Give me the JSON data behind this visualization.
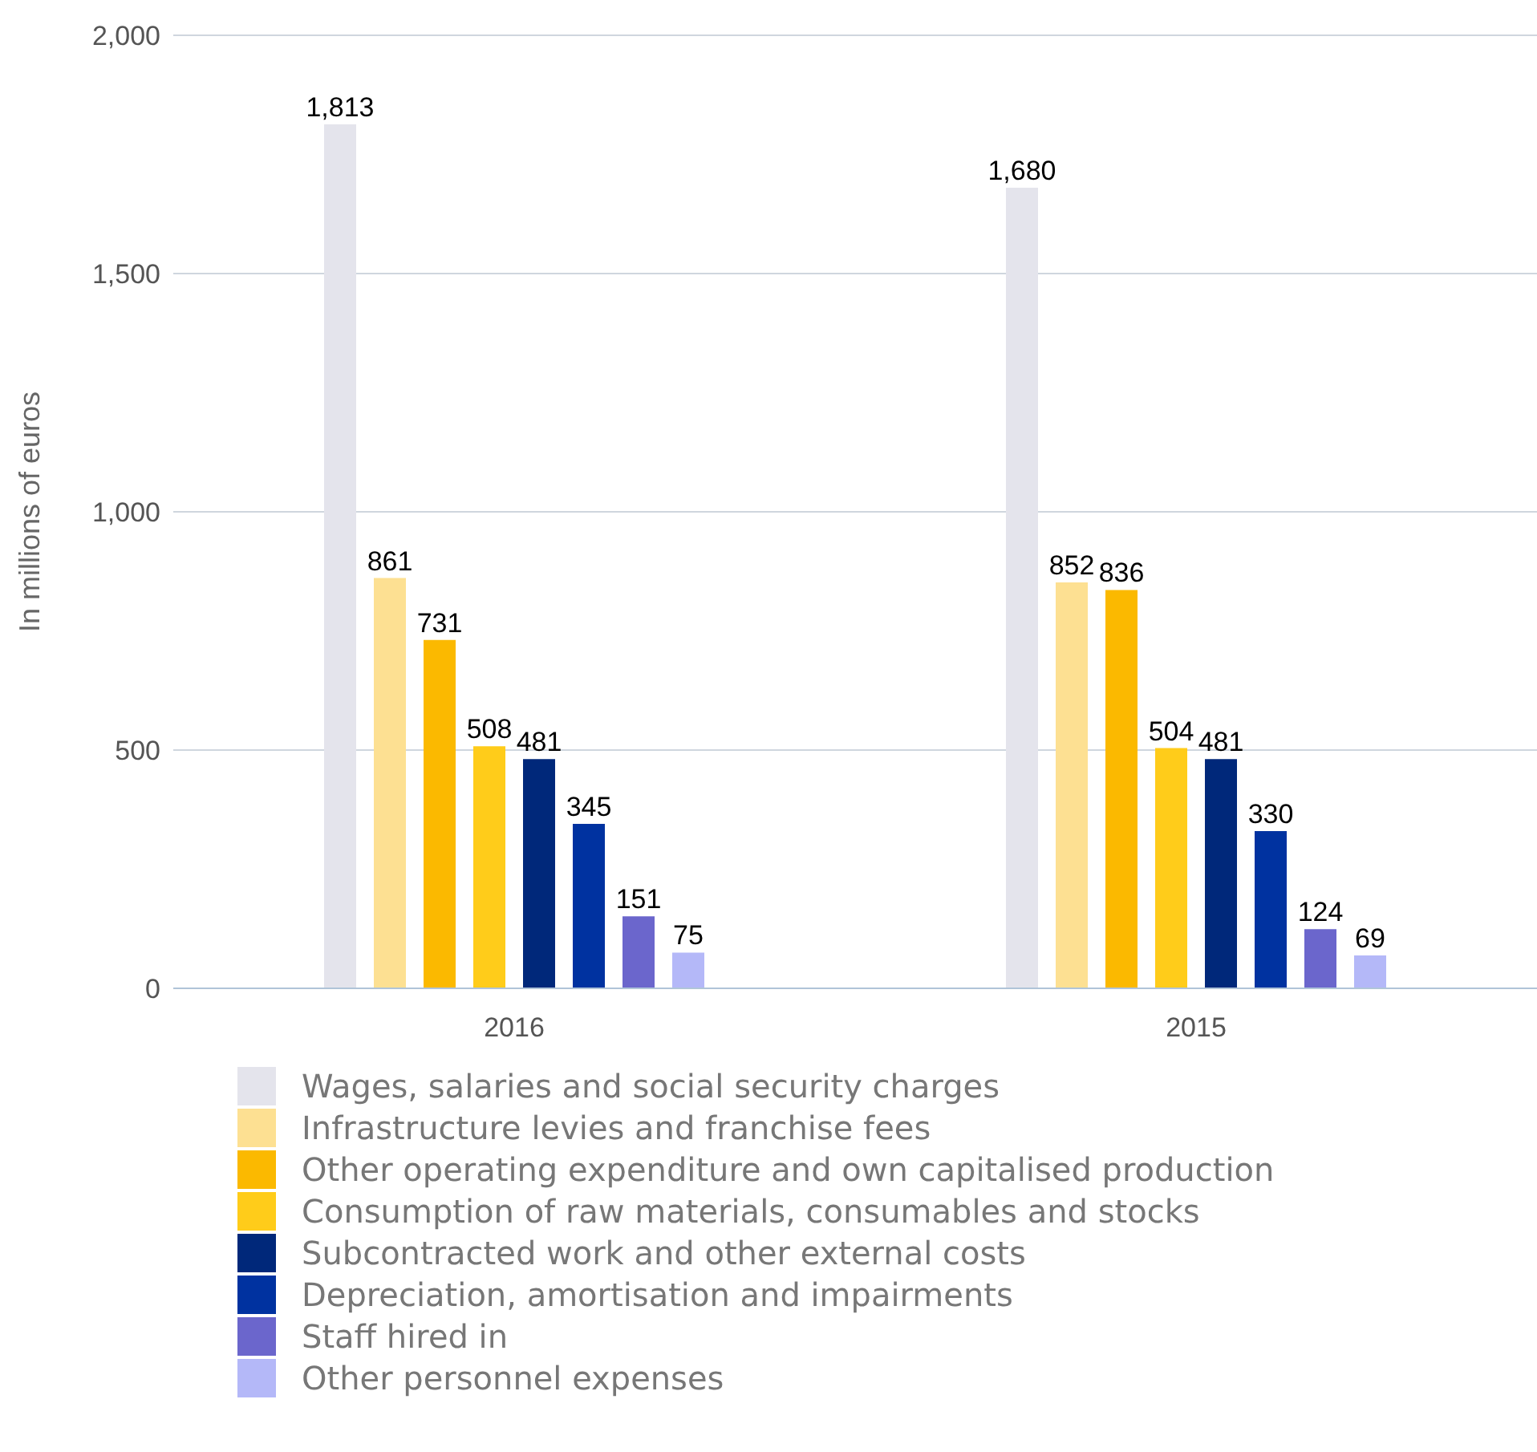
{
  "chart_data": {
    "type": "bar",
    "ylabel": "In millions of euros",
    "categories": [
      "2016",
      "2015"
    ],
    "series": [
      {
        "name": "Wages, salaries and social security charges",
        "color": "#e4e4ec",
        "values": [
          1813,
          1680
        ],
        "value_labels": [
          "1,813",
          "1,680"
        ]
      },
      {
        "name": "Infrastructure levies and franchise fees",
        "color": "#fde092",
        "values": [
          861,
          852
        ],
        "value_labels": [
          "861",
          "852"
        ]
      },
      {
        "name": "Other operating expenditure and own capitalised production",
        "color": "#fbb900",
        "values": [
          731,
          836
        ],
        "value_labels": [
          "731",
          "836"
        ]
      },
      {
        "name": "Consumption of raw materials, consumables and stocks",
        "color": "#ffcc1a",
        "values": [
          508,
          504
        ],
        "value_labels": [
          "508",
          "504"
        ]
      },
      {
        "name": "Subcontracted work and other external costs",
        "color": "#00287a",
        "values": [
          481,
          481
        ],
        "value_labels": [
          "481",
          "481"
        ]
      },
      {
        "name": "Depreciation, amortisation and impairments",
        "color": "#0032a0",
        "values": [
          345,
          330
        ],
        "value_labels": [
          "345",
          "330"
        ]
      },
      {
        "name": "Staff hired in",
        "color": "#6b66cc",
        "values": [
          151,
          124
        ],
        "value_labels": [
          "151",
          "124"
        ]
      },
      {
        "name": "Other personnel expenses",
        "color": "#b4b8f8",
        "values": [
          75,
          69
        ],
        "value_labels": [
          "75",
          "69"
        ]
      }
    ],
    "ylim": [
      0,
      2000
    ],
    "yticks": [
      0,
      {
        "value": 500,
        "label": "500"
      },
      {
        "value": 1000,
        "label": "1,000"
      },
      {
        "value": 1500,
        "label": "1,500"
      },
      {
        "value": 2000,
        "label": "2,000"
      }
    ],
    "grid": "y",
    "legend": "bottom"
  }
}
